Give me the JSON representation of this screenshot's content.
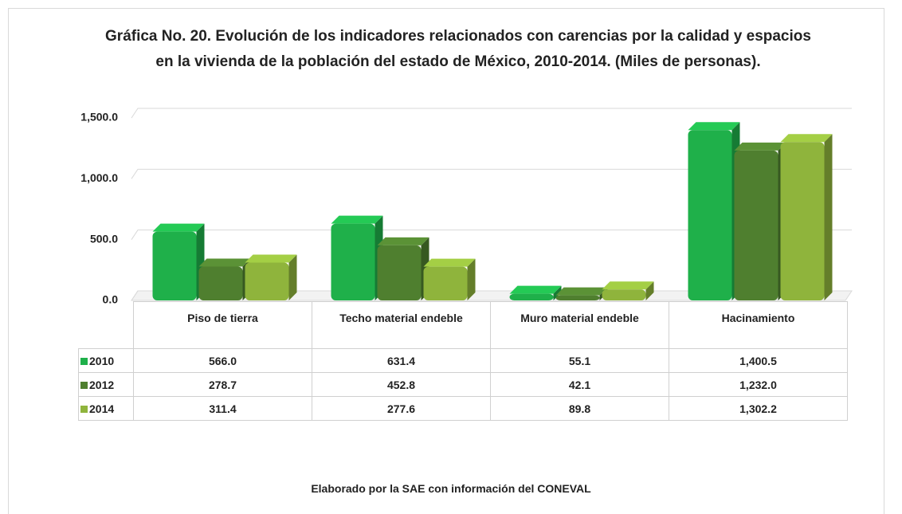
{
  "chart_data": {
    "type": "bar",
    "title": "Gráfica No. 20. Evolución de los indicadores relacionados con carencias por la calidad y espacios en la vivienda de la población del estado de México, 2010-2014. (Miles de personas).",
    "categories": [
      "Piso de tierra",
      "Techo material endeble",
      "Muro material endeble",
      "Hacinamiento"
    ],
    "series": [
      {
        "name": "2010",
        "color": "#1fb04a",
        "values": [
          566.0,
          631.4,
          55.1,
          1400.5
        ],
        "value_labels": [
          "566.0",
          "631.4",
          "55.1",
          "1,400.5"
        ]
      },
      {
        "name": "2012",
        "color": "#4f7f2f",
        "values": [
          278.7,
          452.8,
          42.1,
          1232.0
        ],
        "value_labels": [
          "278.7",
          "452.8",
          "42.1",
          "1,232.0"
        ]
      },
      {
        "name": "2014",
        "color": "#8fb43c",
        "values": [
          311.4,
          277.6,
          89.8,
          1302.2
        ],
        "value_labels": [
          "311.4",
          "277.6",
          "89.8",
          "1,302.2"
        ]
      }
    ],
    "ylim": [
      0,
      1500
    ],
    "yticks": [
      {
        "value": 0,
        "label": "0.0"
      },
      {
        "value": 500,
        "label": "500.0"
      },
      {
        "value": 1000,
        "label": "1,000.0"
      },
      {
        "value": 1500,
        "label": "1,500.0"
      }
    ],
    "grid": true,
    "source": "Elaborado por la SAE con información del CONEVAL"
  }
}
